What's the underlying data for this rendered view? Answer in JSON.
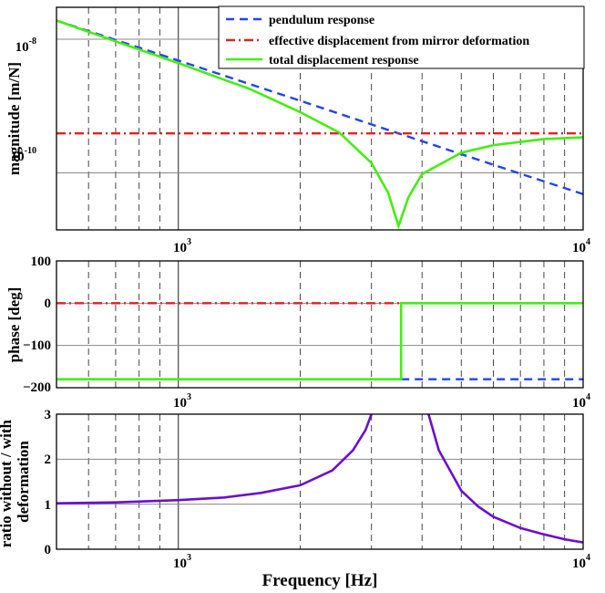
{
  "chart_data": [
    {
      "type": "line",
      "panel": "magnitude",
      "xscale": "log",
      "xlim": [
        500,
        10000
      ],
      "yscale": "log",
      "ylim": [
        1.4e-11,
        3e-08
      ],
      "ylabel": "magnitude [m/N]",
      "xticks": [
        {
          "base": "10",
          "exp": "3",
          "value": 1000
        },
        {
          "base": "10",
          "exp": "4",
          "value": 10000
        }
      ],
      "yticks": [
        {
          "base": "10",
          "exp": "-8",
          "value": 1e-08
        },
        {
          "base": "10",
          "exp": "-10",
          "value": 1e-10
        }
      ],
      "legend": {
        "position": "top-right",
        "entries": [
          "pendulum response",
          "effective displacement from mirror deformation",
          "total displacement response"
        ]
      },
      "series": [
        {
          "name": "pendulum response",
          "color": "#2244ee",
          "style": "dashed",
          "x": [
            500,
            1000,
            2000,
            3000,
            3500,
            5000,
            7000,
            10000
          ],
          "y": [
            1.9e-08,
            4.8e-09,
            1.2e-09,
            5.3e-10,
            3.9e-10,
            1.9e-10,
            9.7e-11,
            4.8e-11
          ]
        },
        {
          "name": "effective displacement from mirror deformation",
          "color": "#dd2222",
          "style": "dash-dot",
          "x": [
            500,
            10000
          ],
          "y": [
            3.9e-10,
            3.9e-10
          ]
        },
        {
          "name": "total displacement response",
          "color": "#44ee11",
          "style": "solid",
          "x": [
            500,
            700,
            1000,
            1500,
            2000,
            2500,
            3000,
            3300,
            3500,
            3700,
            4000,
            5000,
            6000,
            7000,
            8000,
            10000
          ],
          "y": [
            1.9e-08,
            9.3e-09,
            4.4e-09,
            1.8e-09,
            8.1e-10,
            4e-10,
            1.4e-10,
            5e-11,
            1.6e-11,
            4.3e-11,
            9.6e-11,
            2e-10,
            2.6e-10,
            2.9e-10,
            3.2e-10,
            3.4e-10
          ]
        }
      ]
    },
    {
      "type": "line",
      "panel": "phase",
      "xscale": "log",
      "xlim": [
        500,
        10000
      ],
      "ylim": [
        -200,
        100
      ],
      "ylabel": "phase [deg]",
      "xticks": [
        {
          "base": "10",
          "exp": "3",
          "value": 1000
        },
        {
          "base": "10",
          "exp": "4",
          "value": 10000
        }
      ],
      "yticks": [
        {
          "label": "100",
          "value": 100
        },
        {
          "label": "0",
          "value": 0
        },
        {
          "label": "−100",
          "value": -100
        },
        {
          "label": "−200",
          "value": -200
        }
      ],
      "series": [
        {
          "name": "pendulum response",
          "color": "#2244ee",
          "style": "dashed",
          "x": [
            500,
            3550,
            3550,
            10000
          ],
          "y": [
            -180,
            -180,
            -180,
            -180
          ]
        },
        {
          "name": "effective displacement from mirror deformation",
          "color": "#dd2222",
          "style": "dash-dot",
          "x": [
            500,
            10000
          ],
          "y": [
            0,
            0
          ]
        },
        {
          "name": "total displacement response",
          "color": "#44ee11",
          "style": "solid",
          "x": [
            500,
            3550,
            3550,
            10000
          ],
          "y": [
            -180,
            -180,
            0,
            0
          ]
        }
      ]
    },
    {
      "type": "line",
      "panel": "ratio",
      "xscale": "log",
      "xlim": [
        500,
        10000
      ],
      "ylim": [
        0,
        3
      ],
      "ylabel_lines": [
        "ratio without / with",
        "deformation"
      ],
      "xlabel": "Frequency [Hz]",
      "xticks": [
        {
          "base": "10",
          "exp": "3",
          "value": 1000
        },
        {
          "base": "10",
          "exp": "4",
          "value": 10000
        }
      ],
      "yticks": [
        {
          "label": "3",
          "value": 3
        },
        {
          "label": "2",
          "value": 2
        },
        {
          "label": "1",
          "value": 1
        },
        {
          "label": "0",
          "value": 0
        }
      ],
      "series": [
        {
          "name": "ratio",
          "color": "#6a10cc",
          "style": "solid",
          "segments": [
            {
              "x": [
                500,
                700,
                1000,
                1300,
                1600,
                2000,
                2400,
                2700,
                2900,
                3000
              ],
              "y": [
                1.02,
                1.04,
                1.09,
                1.15,
                1.25,
                1.42,
                1.75,
                2.2,
                2.65,
                3.0
              ]
            },
            {
              "x": [
                4150,
                4400,
                5000,
                5500,
                6000,
                7000,
                8000,
                9000,
                10000
              ],
              "y": [
                3.0,
                2.2,
                1.3,
                0.95,
                0.72,
                0.47,
                0.33,
                0.22,
                0.15
              ]
            }
          ]
        }
      ]
    }
  ]
}
